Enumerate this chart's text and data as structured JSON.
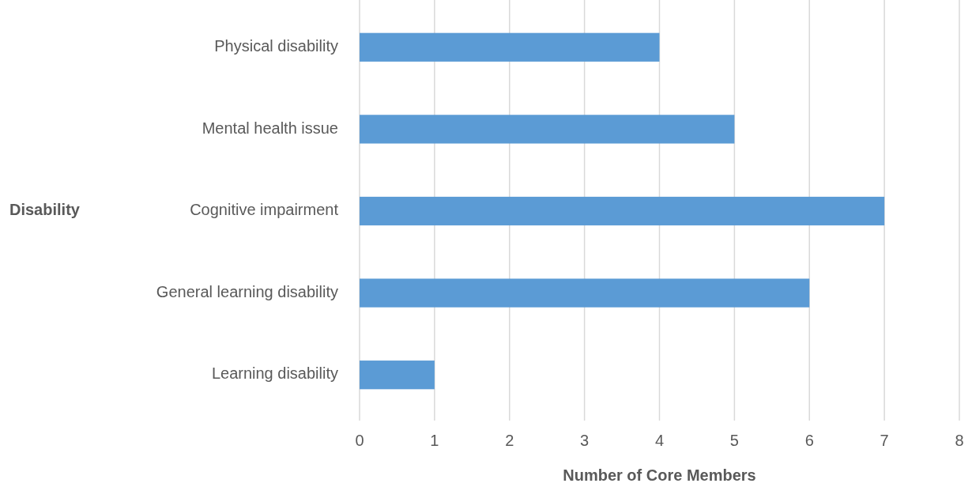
{
  "chart_data": {
    "type": "bar",
    "orientation": "horizontal",
    "xlabel": "Number of Core Members",
    "ylabel": "Disability",
    "categories": [
      "Physical disability",
      "Mental health issue",
      "Cognitive impairment",
      "General learning disability",
      "Learning disability"
    ],
    "values": [
      4,
      5,
      7,
      6,
      1
    ],
    "color": "#5b9bd5",
    "xlim": [
      0,
      8
    ],
    "xticks": [
      0,
      1,
      2,
      3,
      4,
      5,
      6,
      7,
      8
    ],
    "grid": "x"
  }
}
